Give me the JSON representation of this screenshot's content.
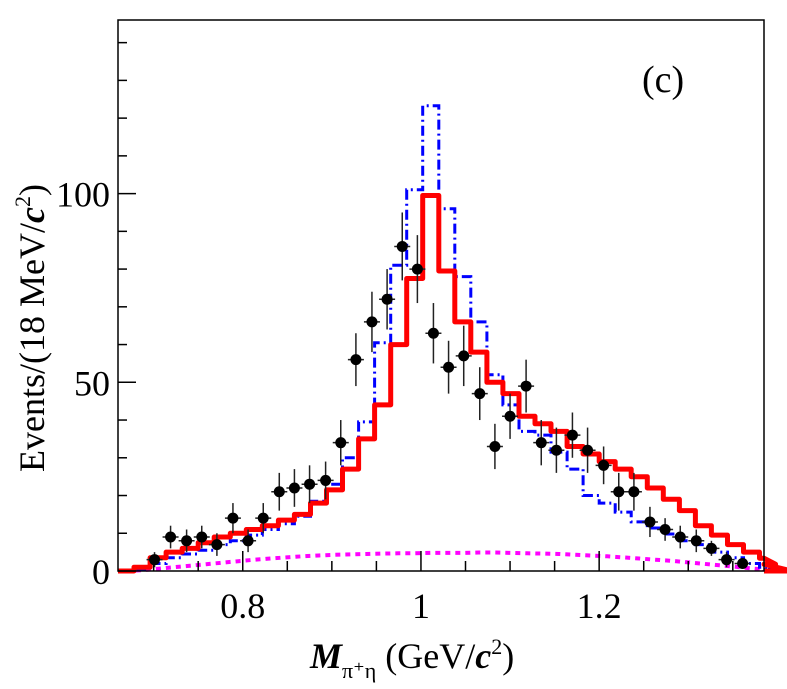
{
  "chart_data": {
    "type": "histogram",
    "panel_label": "(c)",
    "xlabel": {
      "main": "M",
      "sub": "π⁺η",
      "unit": " (GeV/",
      "unit_c": "c",
      "unit_sup": "2",
      "unit_close": ")"
    },
    "ylabel": {
      "text": "Events/(18 MeV/",
      "c": "c",
      "sup": "2",
      "close": ")"
    },
    "xlim": [
      0.66,
      1.385
    ],
    "ylim": [
      0,
      146
    ],
    "x_ticks": [
      0.8,
      1.0,
      1.2
    ],
    "x_tick_labels": [
      "0.8",
      "1",
      "1.2"
    ],
    "x_minor_step": 0.05,
    "y_ticks": [
      0,
      50,
      100
    ],
    "y_tick_labels": [
      "0",
      "50",
      "100"
    ],
    "y_minor_step": 10,
    "bin_width": 0.018,
    "bin_start": 0.66,
    "data_points": {
      "name": "Data",
      "color": "#000000",
      "x": [
        0.701,
        0.719,
        0.737,
        0.754,
        0.771,
        0.789,
        0.806,
        0.823,
        0.841,
        0.858,
        0.875,
        0.893,
        0.91,
        0.927,
        0.945,
        0.962,
        0.979,
        0.996,
        1.014,
        1.031,
        1.048,
        1.066,
        1.083,
        1.1,
        1.118,
        1.135,
        1.152,
        1.17,
        1.187,
        1.205,
        1.222,
        1.239,
        1.257,
        1.274,
        1.291,
        1.309,
        1.326,
        1.343,
        1.361
      ],
      "y": [
        3,
        9,
        8,
        9,
        7,
        14,
        8,
        14,
        21,
        22,
        23,
        24,
        34,
        56,
        66,
        72,
        86,
        80,
        63,
        54,
        57,
        47,
        33,
        41,
        49,
        34,
        32,
        36,
        32,
        28,
        21,
        21,
        13,
        11,
        9,
        8,
        6,
        3,
        2
      ],
      "yerr": [
        2,
        3,
        3,
        3,
        3,
        4,
        3,
        4,
        5,
        5,
        5,
        5,
        6,
        7,
        8,
        8,
        9,
        9,
        8,
        7,
        8,
        7,
        6,
        6,
        7,
        6,
        6,
        6,
        6,
        5,
        5,
        5,
        4,
        3,
        3,
        3,
        2,
        2,
        1
      ]
    },
    "series": [
      {
        "name": "Fit total",
        "style": "solid-step",
        "color": "#ff0000",
        "values": [
          0,
          1,
          3.5,
          5,
          6,
          7.5,
          9,
          10,
          11,
          12,
          13.5,
          15,
          18,
          21.5,
          27,
          35,
          44,
          60,
          77.5,
          99.5,
          79.5,
          66,
          58,
          50,
          47,
          41,
          39,
          37,
          33,
          31,
          29,
          27,
          25,
          22,
          19,
          16,
          12,
          9.5,
          7,
          5,
          3.4,
          1.8,
          0
        ]
      },
      {
        "name": "Signal",
        "style": "dash-dot-step",
        "color": "#0000ff",
        "values": [
          0,
          0.5,
          2,
          3.5,
          4.5,
          5.5,
          7,
          8,
          9.5,
          11,
          12.5,
          14.5,
          18.5,
          23,
          30,
          39.5,
          60.5,
          81,
          101,
          123.3,
          96,
          78,
          66,
          52,
          44,
          37,
          36,
          31.5,
          27,
          20,
          18,
          15.6,
          13,
          11.4,
          9.8,
          8,
          7,
          5,
          3.5,
          2,
          1,
          0.5,
          0
        ]
      },
      {
        "name": "Background",
        "style": "dotted",
        "color": "#ff00ff",
        "values": [
          0,
          0.2,
          0.6,
          1,
          1.4,
          1.8,
          2.2,
          2.6,
          3,
          3.3,
          3.6,
          3.9,
          4.1,
          4.3,
          4.4,
          4.5,
          4.6,
          4.7,
          4.7,
          4.8,
          4.8,
          4.8,
          4.9,
          4.9,
          4.8,
          4.7,
          4.6,
          4.5,
          4.3,
          4.1,
          3.9,
          3.6,
          3.3,
          3,
          2.7,
          2.3,
          1.9,
          1.5,
          1.1,
          0.7,
          0.4,
          0.1,
          0
        ]
      }
    ]
  }
}
